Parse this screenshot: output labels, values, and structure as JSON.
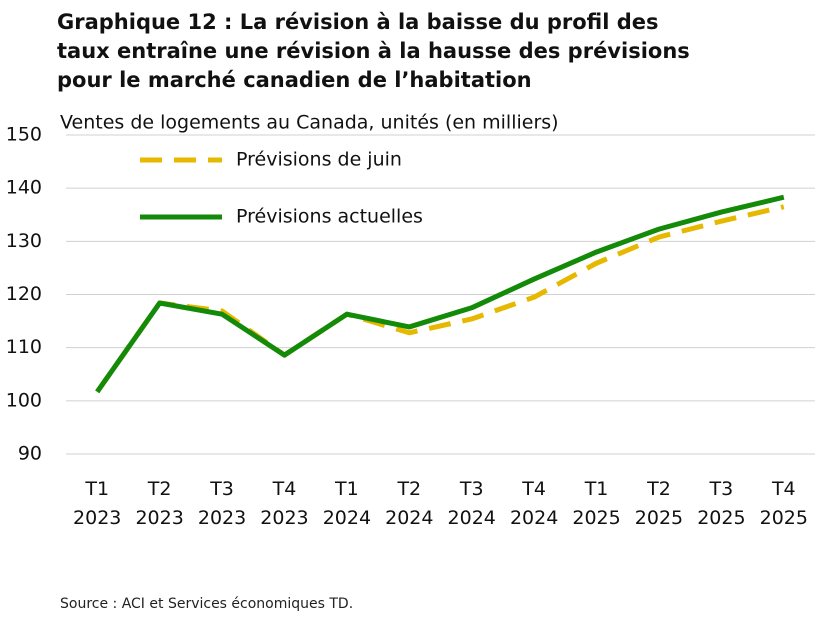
{
  "chart_data": {
    "type": "line",
    "title": "Graphique 12 : La révision à la baisse du profil des taux entraîne une révision à la hausse des prévisions pour le marché canadien de l’habitation",
    "subtitle": "Ventes de logements au Canada, unités (en milliers)",
    "source": "Source : ACI et Services économiques TD.",
    "categories": [
      "T1 2023",
      "T2 2023",
      "T3 2023",
      "T4 2023",
      "T1 2024",
      "T2 2024",
      "T3 2024",
      "T4 2024",
      "T1 2025",
      "T2 2025",
      "T3 2025",
      "T4 2025"
    ],
    "series": [
      {
        "name": "Prévisions de juin",
        "color": "#e6b800",
        "dashed": true,
        "values": [
          101.7,
          118.4,
          116.9,
          108.6,
          116.3,
          112.8,
          115.4,
          119.5,
          125.9,
          130.8,
          133.8,
          136.5
        ]
      },
      {
        "name": "Prévisions actuelles",
        "color": "#138a08",
        "dashed": false,
        "values": [
          101.7,
          118.4,
          116.3,
          108.6,
          116.3,
          113.9,
          117.5,
          122.9,
          128.0,
          132.3,
          135.5,
          138.3
        ]
      }
    ],
    "ylim": [
      90,
      150
    ],
    "yticks": [
      90,
      100,
      110,
      120,
      130,
      140,
      150
    ],
    "grid": true,
    "legend": "top-left"
  }
}
